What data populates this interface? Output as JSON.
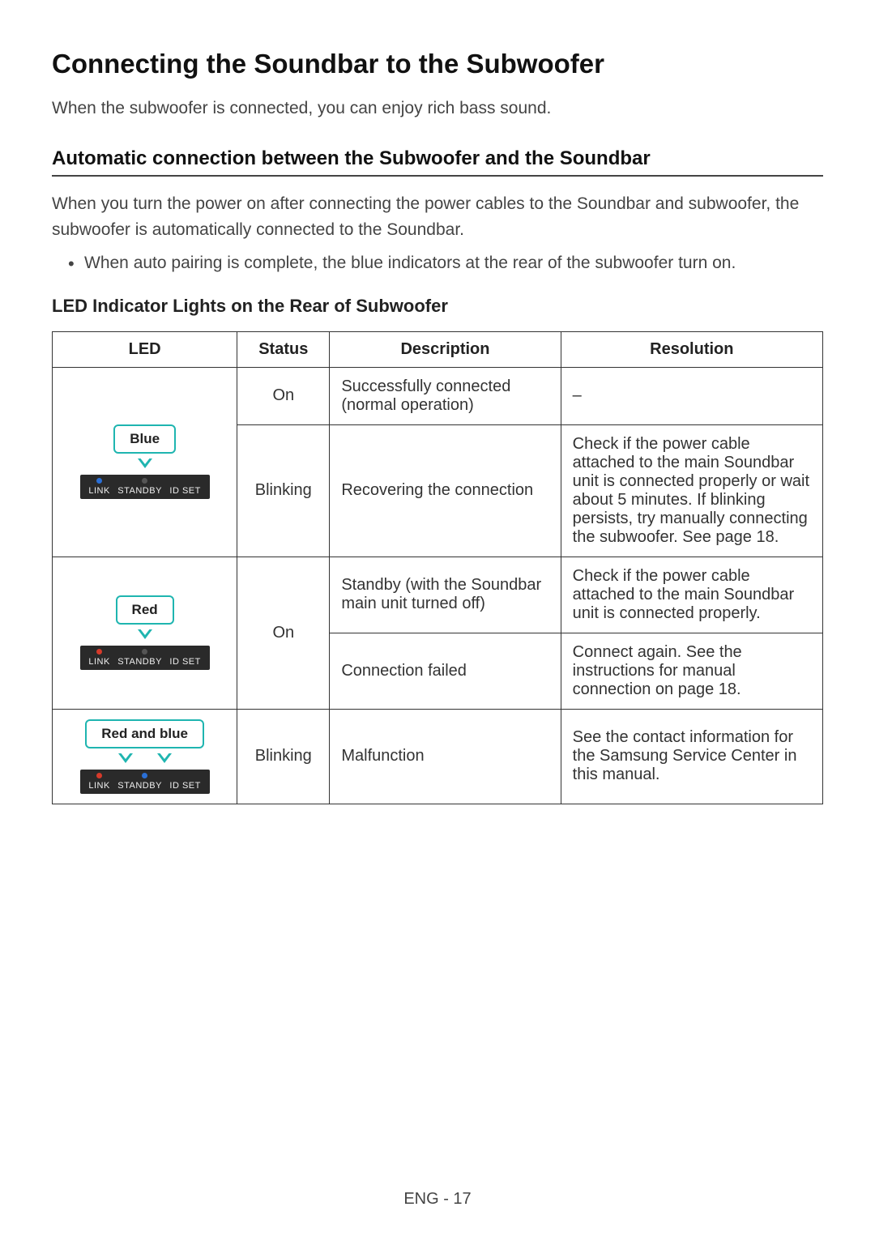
{
  "title": "Connecting the Soundbar to the Subwoofer",
  "intro": "When the subwoofer is connected, you can enjoy rich bass sound.",
  "subtitle": "Automatic connection between the Subwoofer and the Soundbar",
  "para1": "When you turn the power on after connecting the power cables to the Soundbar and subwoofer, the subwoofer is automatically connected to the Soundbar.",
  "bullet1": "When auto pairing is complete, the blue indicators at the rear of the subwoofer turn on.",
  "led_heading": "LED Indicator Lights on the Rear of Subwoofer",
  "table": {
    "headers": {
      "led": "LED",
      "status": "Status",
      "description": "Description",
      "resolution": "Resolution"
    },
    "panel_labels": {
      "link": "LINK",
      "standby": "STANDBY",
      "idset": "ID SET"
    },
    "callouts": {
      "blue": "Blue",
      "red": "Red",
      "redblue": "Red and blue"
    },
    "colors": {
      "blue_dot": "#2a6fd6",
      "red_dot": "#d63a2a",
      "panel_bg": "#2a2a2a",
      "callout_border": "#1fb5b0"
    },
    "rows": [
      {
        "status": "On",
        "description": "Successfully connected (normal operation)",
        "resolution": "–"
      },
      {
        "status": "Blinking",
        "description": "Recovering the connection",
        "resolution": "Check if the power cable attached to the main Soundbar unit is connected properly or wait about 5 minutes. If blinking persists, try manually connecting the subwoofer. See page 18."
      },
      {
        "status": "On",
        "description_a": "Standby (with the Soundbar main unit turned off)",
        "resolution_a": "Check if the power cable attached to the main Soundbar unit is connected properly.",
        "description_b": "Connection failed",
        "resolution_b": "Connect again. See the instructions for manual connection on page 18."
      },
      {
        "status": "Blinking",
        "description": "Malfunction",
        "resolution": "See the contact information for the Samsung Service Center in this manual."
      }
    ]
  },
  "footer": "ENG - 17"
}
